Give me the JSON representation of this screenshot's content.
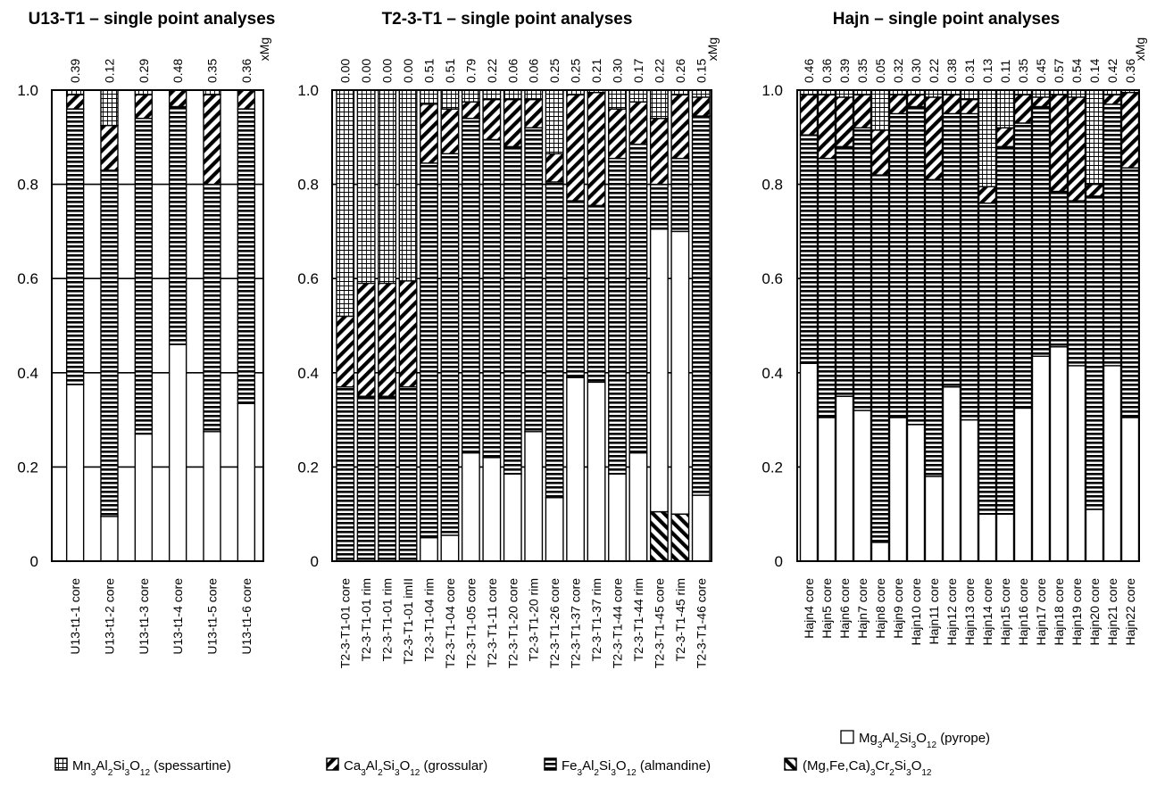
{
  "colors": {
    "stroke": "#000000",
    "background": "#ffffff"
  },
  "legend": {
    "pyrope": {
      "formula": "Mg3Al2Si3O12",
      "label": "(pyrope)"
    },
    "spessartine": {
      "formula": "Mn3Al2Si3O12",
      "label": "(spessartine)"
    },
    "grossular": {
      "formula": "Ca3Al2Si3O12",
      "label": "(grossular)"
    },
    "almandine": {
      "formula": "Fe3Al2Si3O12",
      "label": "(almandine)"
    },
    "chromium": {
      "formula": "(Mg,Fe,Ca)3Cr2Si3O12",
      "label": ""
    }
  },
  "chart_data": [
    {
      "type": "bar",
      "stacked": true,
      "title": "U13-T1 – single point analyses",
      "ylim": [
        0,
        1
      ],
      "yticks": [
        "0",
        "0.2",
        "0.4",
        "0.6",
        "0.8",
        "1.0"
      ],
      "top_label": "xMg",
      "grid": true,
      "categories": [
        "U13-t1-1 core",
        "U13-t1-2 core",
        "U13-t1-3 core",
        "U13-t1-4 core",
        "U13-t1-5 core",
        "U13-t1-6 core"
      ],
      "xMg": [
        "0.39",
        "0.12",
        "0.29",
        "0.48",
        "0.35",
        "0.36"
      ],
      "series": [
        {
          "key": "pyrope",
          "values": [
            0.375,
            0.095,
            0.27,
            0.46,
            0.275,
            0.335
          ]
        },
        {
          "key": "almandine",
          "values": [
            0.585,
            0.735,
            0.67,
            0.505,
            0.525,
            0.625
          ]
        },
        {
          "key": "grossular",
          "values": [
            0.03,
            0.095,
            0.05,
            0.035,
            0.19,
            0.04
          ]
        },
        {
          "key": "spessartine",
          "values": [
            0.01,
            0.075,
            0.01,
            0.0,
            0.01,
            0.0
          ]
        }
      ]
    },
    {
      "type": "bar",
      "stacked": true,
      "title": "T2-3-T1 – single point analyses",
      "ylim": [
        0,
        1
      ],
      "yticks": [
        "0",
        "0.2",
        "0.4",
        "0.6",
        "0.8",
        "1.0"
      ],
      "top_label": "xMg",
      "grid": true,
      "categories": [
        "T2-3-T1-01 core",
        "T2-3-T1-01 rim",
        "T2-3-T1-01 rim",
        "T2-3-T1-01 imII",
        "T2-3-T1-04 rim",
        "T2-3-T1-04 core",
        "T2-3-T1-05 core",
        "T2-3-T1-11 core",
        "T2-3-T1-20 core",
        "T2-3-T1-20 rim",
        "T2-3-T1-26 core",
        "T2-3-T1-37 core",
        "T2-3-T1-37 rim",
        "T2-3-T1-44 core",
        "T2-3-T1-44 rim",
        "T2-3-T1-45 core",
        "T2-3-T1-45 rim",
        "T2-3-T1-46 core"
      ],
      "xMg": [
        "0.00",
        "0.00",
        "0.00",
        "0.00",
        "0.51",
        "0.51",
        "0.79",
        "0.22",
        "0.06",
        "0.06",
        "0.25",
        "0.25",
        "0.21",
        "0.30",
        "0.17",
        "0.22",
        "0.26",
        "0.15"
      ],
      "series": [
        {
          "key": "chromium",
          "values": [
            0,
            0,
            0,
            0,
            0,
            0,
            0,
            0,
            0,
            0,
            0,
            0,
            0,
            0,
            0,
            0.105,
            0.1,
            0
          ]
        },
        {
          "key": "pyrope",
          "values": [
            0.0,
            0.0,
            0.0,
            0.0,
            0.05,
            0.055,
            0.23,
            0.22,
            0.185,
            0.275,
            0.135,
            0.39,
            0.38,
            0.185,
            0.23,
            0.6,
            0.6,
            0.14
          ]
        },
        {
          "key": "almandine",
          "values": [
            0.37,
            0.35,
            0.35,
            0.37,
            0.795,
            0.81,
            0.71,
            0.675,
            0.695,
            0.645,
            0.67,
            0.375,
            0.375,
            0.67,
            0.655,
            0.095,
            0.155,
            0.805
          ]
        },
        {
          "key": "grossular",
          "values": [
            0.15,
            0.24,
            0.24,
            0.225,
            0.125,
            0.095,
            0.035,
            0.085,
            0.1,
            0.06,
            0.06,
            0.225,
            0.24,
            0.105,
            0.09,
            0.14,
            0.135,
            0.04
          ]
        },
        {
          "key": "spessartine",
          "values": [
            0.48,
            0.41,
            0.41,
            0.405,
            0.03,
            0.04,
            0.025,
            0.02,
            0.02,
            0.02,
            0.135,
            0.01,
            0.005,
            0.04,
            0.025,
            0.06,
            0.01,
            0.015
          ]
        }
      ]
    },
    {
      "type": "bar",
      "stacked": true,
      "title": "Hajn – single point analyses",
      "ylim": [
        0,
        1
      ],
      "yticks": [
        "0",
        "0.2",
        "0.4",
        "0.6",
        "0.8",
        "1.0"
      ],
      "top_label": "xMg",
      "grid": true,
      "categories": [
        "Hajn4 core",
        "Hajn5 core",
        "Hajn6 core",
        "Hajn7 core",
        "Hajn8 core",
        "Hajn9 core",
        "Hajn10 core",
        "Hajn11 core",
        "Hajn12 core",
        "Hajn13 core",
        "Hajn14 core",
        "Hajn15 core",
        "Hajn16 core",
        "Hajn17 core",
        "Hajn18 core",
        "Hajn19 core",
        "Hajn20 core",
        "Hajn21 core",
        "Hajn22 core"
      ],
      "xMg": [
        "0.46",
        "0.36",
        "0.39",
        "0.35",
        "0.05",
        "0.32",
        "0.30",
        "0.22",
        "0.38",
        "0.31",
        "0.13",
        "0.11",
        "0.35",
        "0.45",
        "0.57",
        "0.54",
        "0.14",
        "0.42",
        "0.36"
      ],
      "series": [
        {
          "key": "pyrope",
          "values": [
            0.42,
            0.305,
            0.35,
            0.32,
            0.04,
            0.305,
            0.29,
            0.18,
            0.37,
            0.3,
            0.1,
            0.1,
            0.325,
            0.435,
            0.455,
            0.415,
            0.11,
            0.415,
            0.305
          ]
        },
        {
          "key": "almandine",
          "values": [
            0.485,
            0.55,
            0.53,
            0.6,
            0.78,
            0.645,
            0.675,
            0.63,
            0.58,
            0.65,
            0.66,
            0.78,
            0.605,
            0.53,
            0.33,
            0.35,
            0.665,
            0.555,
            0.53
          ]
        },
        {
          "key": "grossular",
          "values": [
            0.085,
            0.135,
            0.105,
            0.07,
            0.095,
            0.04,
            0.025,
            0.175,
            0.04,
            0.03,
            0.035,
            0.04,
            0.06,
            0.02,
            0.205,
            0.22,
            0.025,
            0.02,
            0.16
          ]
        },
        {
          "key": "spessartine",
          "values": [
            0.01,
            0.01,
            0.015,
            0.01,
            0.085,
            0.01,
            0.01,
            0.015,
            0.01,
            0.02,
            0.205,
            0.08,
            0.01,
            0.015,
            0.01,
            0.015,
            0.2,
            0.01,
            0.005
          ]
        }
      ]
    }
  ]
}
